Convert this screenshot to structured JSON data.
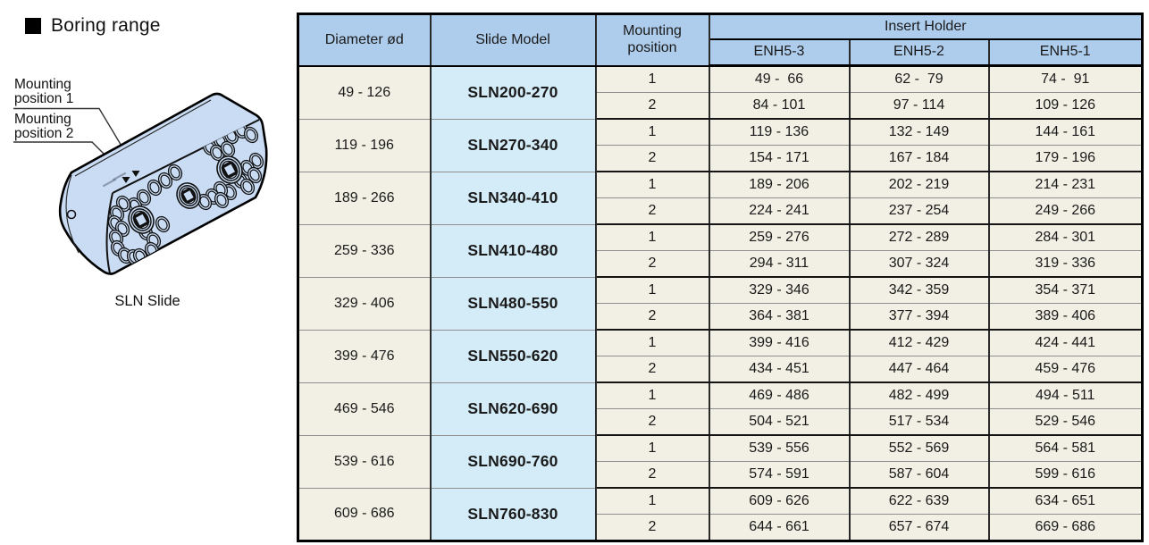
{
  "colors": {
    "header_blue": "#aecdec",
    "model_blue": "#d4ecf8",
    "cell_cream": "#f2efe4",
    "slide_blue": "#c9dcf4"
  },
  "header": {
    "title": "Boring range"
  },
  "illustration": {
    "labels": [
      {
        "line1": "Mounting",
        "line2": "position 1"
      },
      {
        "line1": "Mounting",
        "line2": "position 2"
      }
    ],
    "caption": "SLN Slide"
  },
  "table": {
    "headers": {
      "diameter": "Diameter ød",
      "slide_model": "Slide Model",
      "mounting_position": "Mounting position",
      "insert_holder": "Insert Holder",
      "enh_columns": [
        "ENH5-3",
        "ENH5-2",
        "ENH5-1"
      ]
    },
    "groups": [
      {
        "diameter": "49 - 126",
        "model": "SLN200-270",
        "rows": [
          {
            "position": "1",
            "enh5_3": "49 -  66",
            "enh5_2": "62 -  79",
            "enh5_1": "74 -  91"
          },
          {
            "position": "2",
            "enh5_3": "84 - 101",
            "enh5_2": "97 - 114",
            "enh5_1": "109 - 126"
          }
        ]
      },
      {
        "diameter": "119 - 196",
        "model": "SLN270-340",
        "rows": [
          {
            "position": "1",
            "enh5_3": "119 - 136",
            "enh5_2": "132 - 149",
            "enh5_1": "144 - 161"
          },
          {
            "position": "2",
            "enh5_3": "154 - 171",
            "enh5_2": "167 - 184",
            "enh5_1": "179 - 196"
          }
        ]
      },
      {
        "diameter": "189 - 266",
        "model": "SLN340-410",
        "rows": [
          {
            "position": "1",
            "enh5_3": "189 - 206",
            "enh5_2": "202 - 219",
            "enh5_1": "214 - 231"
          },
          {
            "position": "2",
            "enh5_3": "224 - 241",
            "enh5_2": "237 - 254",
            "enh5_1": "249 - 266"
          }
        ]
      },
      {
        "diameter": "259 - 336",
        "model": "SLN410-480",
        "rows": [
          {
            "position": "1",
            "enh5_3": "259 - 276",
            "enh5_2": "272 - 289",
            "enh5_1": "284 - 301"
          },
          {
            "position": "2",
            "enh5_3": "294 - 311",
            "enh5_2": "307 - 324",
            "enh5_1": "319 - 336"
          }
        ]
      },
      {
        "diameter": "329 - 406",
        "model": "SLN480-550",
        "rows": [
          {
            "position": "1",
            "enh5_3": "329 - 346",
            "enh5_2": "342 - 359",
            "enh5_1": "354 - 371"
          },
          {
            "position": "2",
            "enh5_3": "364 - 381",
            "enh5_2": "377 - 394",
            "enh5_1": "389 - 406"
          }
        ]
      },
      {
        "diameter": "399 - 476",
        "model": "SLN550-620",
        "rows": [
          {
            "position": "1",
            "enh5_3": "399 - 416",
            "enh5_2": "412 - 429",
            "enh5_1": "424 - 441"
          },
          {
            "position": "2",
            "enh5_3": "434 - 451",
            "enh5_2": "447 - 464",
            "enh5_1": "459 - 476"
          }
        ]
      },
      {
        "diameter": "469 - 546",
        "model": "SLN620-690",
        "rows": [
          {
            "position": "1",
            "enh5_3": "469 - 486",
            "enh5_2": "482 - 499",
            "enh5_1": "494 - 511"
          },
          {
            "position": "2",
            "enh5_3": "504 - 521",
            "enh5_2": "517 - 534",
            "enh5_1": "529 - 546"
          }
        ]
      },
      {
        "diameter": "539 - 616",
        "model": "SLN690-760",
        "rows": [
          {
            "position": "1",
            "enh5_3": "539 - 556",
            "enh5_2": "552 - 569",
            "enh5_1": "564 - 581"
          },
          {
            "position": "2",
            "enh5_3": "574 - 591",
            "enh5_2": "587 - 604",
            "enh5_1": "599 - 616"
          }
        ]
      },
      {
        "diameter": "609 - 686",
        "model": "SLN760-830",
        "rows": [
          {
            "position": "1",
            "enh5_3": "609 - 626",
            "enh5_2": "622 - 639",
            "enh5_1": "634 - 651"
          },
          {
            "position": "2",
            "enh5_3": "644 - 661",
            "enh5_2": "657 - 674",
            "enh5_1": "669 - 686"
          }
        ]
      }
    ]
  }
}
